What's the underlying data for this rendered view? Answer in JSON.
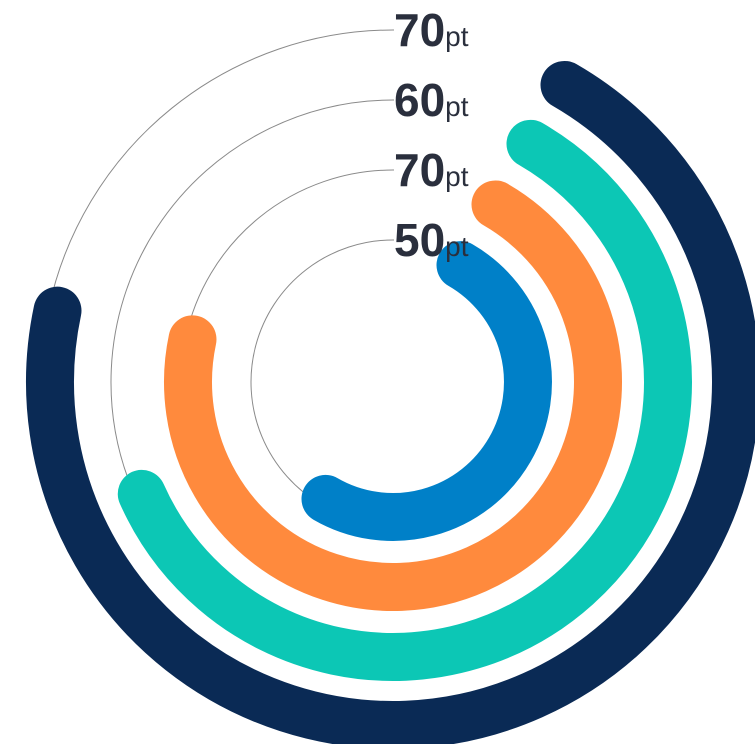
{
  "chart_data": {
    "type": "radial-bar",
    "unit": "pt",
    "max": 100,
    "series": [
      {
        "value": 70,
        "color": "#0a2a55"
      },
      {
        "value": 60,
        "color": "#0cc7b5"
      },
      {
        "value": 70,
        "color": "#ff8a3d"
      },
      {
        "value": 50,
        "color": "#0080c8"
      }
    ],
    "labels": [
      "70",
      "60",
      "70",
      "50"
    ]
  }
}
